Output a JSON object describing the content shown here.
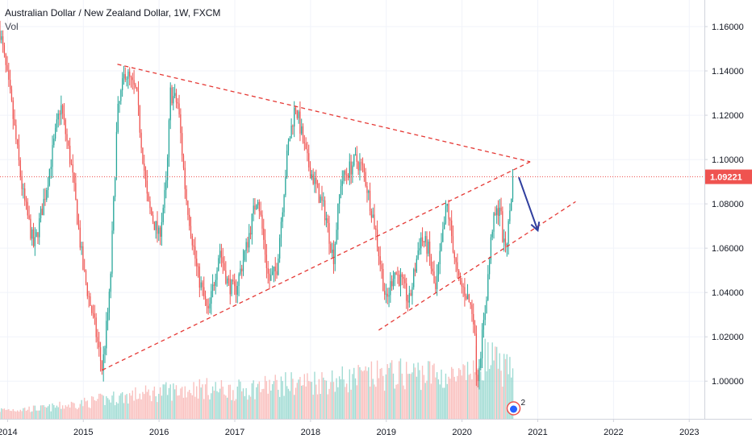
{
  "header": {
    "title": "Australian Dollar / New Zealand Dollar, 1W, FXCM",
    "indicator": "Vol"
  },
  "colors": {
    "up": "#26a69a",
    "down": "#ef5350",
    "up_volume": "#7fcfc4",
    "down_volume": "#f7a9a7",
    "trendline": "#e53935",
    "arrow": "#303f9f",
    "price_tag": "#ef5350",
    "axis_text": "#131722",
    "grid": "#f0f3fa"
  },
  "badge": {
    "count": "2",
    "icon": "bear-icon"
  },
  "chart_data": {
    "type": "candlestick",
    "x_axis": {
      "labels": [
        "2014",
        "2015",
        "2016",
        "2017",
        "2018",
        "2019",
        "2020",
        "2021",
        "2022",
        "2023"
      ],
      "range": [
        2013.9,
        2023.2
      ]
    },
    "y_axis": {
      "labels": [
        "1.16000",
        "1.14000",
        "1.12000",
        "1.10000",
        "1.08000",
        "1.06000",
        "1.04000",
        "1.02000",
        "1.00000"
      ],
      "range": [
        0.983,
        1.172
      ]
    },
    "last_price": "1.09221",
    "last_price_value": 1.09221,
    "anchors": [
      [
        2013.9,
        1.158
      ],
      [
        2014.05,
        1.125
      ],
      [
        2014.2,
        1.085
      ],
      [
        2014.35,
        1.06
      ],
      [
        2014.5,
        1.085
      ],
      [
        2014.7,
        1.125
      ],
      [
        2014.85,
        1.095
      ],
      [
        2015.0,
        1.05
      ],
      [
        2015.15,
        1.025
      ],
      [
        2015.25,
        1.005
      ],
      [
        2015.35,
        1.04
      ],
      [
        2015.45,
        1.12
      ],
      [
        2015.55,
        1.14
      ],
      [
        2015.7,
        1.13
      ],
      [
        2015.85,
        1.08
      ],
      [
        2016.0,
        1.065
      ],
      [
        2016.1,
        1.09
      ],
      [
        2016.15,
        1.13
      ],
      [
        2016.25,
        1.125
      ],
      [
        2016.35,
        1.085
      ],
      [
        2016.5,
        1.05
      ],
      [
        2016.65,
        1.03
      ],
      [
        2016.8,
        1.06
      ],
      [
        2016.9,
        1.045
      ],
      [
        2017.0,
        1.04
      ],
      [
        2017.15,
        1.06
      ],
      [
        2017.3,
        1.085
      ],
      [
        2017.45,
        1.045
      ],
      [
        2017.55,
        1.05
      ],
      [
        2017.7,
        1.105
      ],
      [
        2017.8,
        1.125
      ],
      [
        2017.95,
        1.1
      ],
      [
        2018.1,
        1.085
      ],
      [
        2018.2,
        1.075
      ],
      [
        2018.3,
        1.055
      ],
      [
        2018.4,
        1.09
      ],
      [
        2018.6,
        1.1
      ],
      [
        2018.7,
        1.095
      ],
      [
        2018.85,
        1.07
      ],
      [
        2019.0,
        1.035
      ],
      [
        2019.1,
        1.05
      ],
      [
        2019.2,
        1.045
      ],
      [
        2019.3,
        1.035
      ],
      [
        2019.45,
        1.065
      ],
      [
        2019.55,
        1.06
      ],
      [
        2019.65,
        1.04
      ],
      [
        2019.8,
        1.08
      ],
      [
        2019.95,
        1.045
      ],
      [
        2020.05,
        1.04
      ],
      [
        2020.15,
        1.03
      ],
      [
        2020.2,
        1.0
      ],
      [
        2020.3,
        1.03
      ],
      [
        2020.4,
        1.07
      ],
      [
        2020.5,
        1.08
      ],
      [
        2020.55,
        1.06
      ],
      [
        2020.6,
        1.065
      ],
      [
        2020.67,
        1.092
      ]
    ],
    "volume_anchors": [
      [
        2013.9,
        0.1
      ],
      [
        2014.5,
        0.12
      ],
      [
        2015.0,
        0.18
      ],
      [
        2015.5,
        0.25
      ],
      [
        2016.0,
        0.3
      ],
      [
        2016.5,
        0.35
      ],
      [
        2017.0,
        0.32
      ],
      [
        2017.5,
        0.38
      ],
      [
        2018.0,
        0.42
      ],
      [
        2018.5,
        0.45
      ],
      [
        2019.0,
        0.5
      ],
      [
        2019.5,
        0.52
      ],
      [
        2020.0,
        0.45
      ],
      [
        2020.3,
        0.7
      ],
      [
        2020.67,
        0.5
      ]
    ],
    "trendlines": [
      {
        "name": "triangle-top",
        "from": [
          2015.45,
          1.143
        ],
        "to": [
          2020.9,
          1.099
        ]
      },
      {
        "name": "triangle-bottom",
        "from": [
          2015.25,
          1.005
        ],
        "to": [
          2020.9,
          1.099
        ]
      },
      {
        "name": "channel-lower",
        "from": [
          2018.9,
          1.023
        ],
        "to": [
          2021.5,
          1.081
        ]
      }
    ],
    "arrow": {
      "from": [
        2020.75,
        1.092
      ],
      "to": [
        2021.0,
        1.068
      ]
    }
  }
}
